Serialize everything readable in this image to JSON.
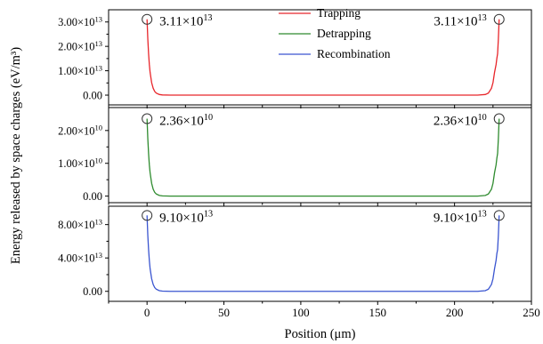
{
  "chart_data": {
    "type": "line",
    "xlabel": "Position (μm)",
    "ylabel": "Energy released by space charges (eV/m³)",
    "xlim": [
      -25,
      250
    ],
    "xticks": [
      {
        "v": 0,
        "label": "0"
      },
      {
        "v": 50,
        "label": "50"
      },
      {
        "v": 100,
        "label": "100"
      },
      {
        "v": 150,
        "label": "150"
      },
      {
        "v": 200,
        "label": "200"
      },
      {
        "v": 250,
        "label": "250"
      }
    ],
    "legend": {
      "placement": "top-center",
      "entries": [
        {
          "name": "Trapping",
          "color": "#e8262b"
        },
        {
          "name": "Detrapping",
          "color": "#2e8b2e"
        },
        {
          "name": "Recombination",
          "color": "#3a55d0"
        }
      ]
    },
    "panels": [
      {
        "series": "Trapping",
        "color": "#e8262b",
        "ylim": [
          -4000000000000.0,
          35000000000000.0
        ],
        "yticks": [
          {
            "v": 0,
            "mant": "0.00",
            "exp": ""
          },
          {
            "v": 10000000000000.0,
            "mant": "1.00×10",
            "exp": "13"
          },
          {
            "v": 20000000000000.0,
            "mant": "2.00×10",
            "exp": "13"
          },
          {
            "v": 30000000000000.0,
            "mant": "3.00×10",
            "exp": "13"
          }
        ],
        "peak": 31100000000000.0,
        "annotations": [
          {
            "mant": "3.11×10",
            "exp": "13",
            "side": "left"
          },
          {
            "mant": "3.11×10",
            "exp": "13",
            "side": "right"
          }
        ],
        "x": [
          0,
          0.5,
          1,
          1.5,
          2,
          3,
          4,
          5,
          6,
          8,
          10,
          15,
          20,
          30,
          50,
          100,
          150,
          200,
          210,
          215,
          220,
          222,
          224,
          225,
          226,
          227,
          227.5,
          228,
          228.5,
          229
        ],
        "y": [
          31100000000000.0,
          23000000000000.0,
          17000000000000.0,
          12500000000000.0,
          9300000000000.0,
          5100000000000.0,
          2800000000000.0,
          1500000000000.0,
          840000000000.0,
          260000000000.0,
          80000000000.0,
          5000000000.0,
          300000000.0,
          0,
          0,
          0,
          0,
          0,
          0,
          5000000000.0,
          260000000000.0,
          840000000000.0,
          2800000000000.0,
          5100000000000.0,
          9300000000000.0,
          12500000000000.0,
          15000000000000.0,
          17000000000000.0,
          23000000000000.0,
          31100000000000.0
        ]
      },
      {
        "series": "Detrapping",
        "color": "#2e8b2e",
        "ylim": [
          -2000000000.0,
          27000000000.0
        ],
        "yticks": [
          {
            "v": 0,
            "mant": "0.00",
            "exp": ""
          },
          {
            "v": 10000000000.0,
            "mant": "1.00×10",
            "exp": "10"
          },
          {
            "v": 20000000000.0,
            "mant": "2.00×10",
            "exp": "10"
          }
        ],
        "peak": 23600000000.0,
        "annotations": [
          {
            "mant": "2.36×10",
            "exp": "10",
            "side": "left"
          },
          {
            "mant": "2.36×10",
            "exp": "10",
            "side": "right"
          }
        ],
        "x": [
          0,
          0.5,
          1,
          1.5,
          2,
          3,
          4,
          5,
          6,
          8,
          10,
          15,
          20,
          30,
          50,
          100,
          150,
          200,
          210,
          215,
          220,
          222,
          224,
          225,
          226,
          227,
          227.5,
          228,
          228.5,
          229
        ],
        "y": [
          23600000000.0,
          17500000000.0,
          13000000000.0,
          9500000000.0,
          7100000000.0,
          3900000000.0,
          2100000000.0,
          1150000000.0,
          640000000.0,
          200000000.0,
          60000000.0,
          4000000.0,
          200000.0,
          0,
          0,
          0,
          0,
          0,
          0,
          4000000.0,
          200000000.0,
          640000000.0,
          2100000000.0,
          3900000000.0,
          7100000000.0,
          9500000000.0,
          11500000000.0,
          13000000000.0,
          17500000000.0,
          23600000000.0
        ]
      },
      {
        "series": "Recombination",
        "color": "#3a55d0",
        "ylim": [
          -12000000000000.0,
          102000000000000.0
        ],
        "yticks": [
          {
            "v": 0,
            "mant": "0.00",
            "exp": ""
          },
          {
            "v": 40000000000000.0,
            "mant": "4.00×10",
            "exp": "13"
          },
          {
            "v": 80000000000000.0,
            "mant": "8.00×10",
            "exp": "13"
          }
        ],
        "peak": 91000000000000.0,
        "annotations": [
          {
            "mant": "9.10×10",
            "exp": "13",
            "side": "left"
          },
          {
            "mant": "9.10×10",
            "exp": "13",
            "side": "right"
          }
        ],
        "x": [
          0,
          0.5,
          1,
          1.5,
          2,
          3,
          4,
          5,
          6,
          8,
          10,
          15,
          20,
          30,
          50,
          100,
          150,
          200,
          210,
          215,
          220,
          222,
          224,
          225,
          226,
          227,
          227.5,
          228,
          228.5,
          229
        ],
        "y": [
          91000000000000.0,
          67000000000000.0,
          50000000000000.0,
          37000000000000.0,
          27000000000000.0,
          15000000000000.0,
          8200000000000.0,
          4500000000000.0,
          2500000000000.0,
          760000000000.0,
          230000000000.0,
          15000000000.0,
          900000000.0,
          0,
          0,
          0,
          0,
          0,
          0,
          15000000000.0,
          760000000000.0,
          2500000000000.0,
          8200000000000.0,
          15000000000000.0,
          27000000000000.0,
          37000000000000.0,
          45000000000000.0,
          50000000000000.0,
          67000000000000.0,
          91000000000000.0
        ]
      }
    ]
  }
}
